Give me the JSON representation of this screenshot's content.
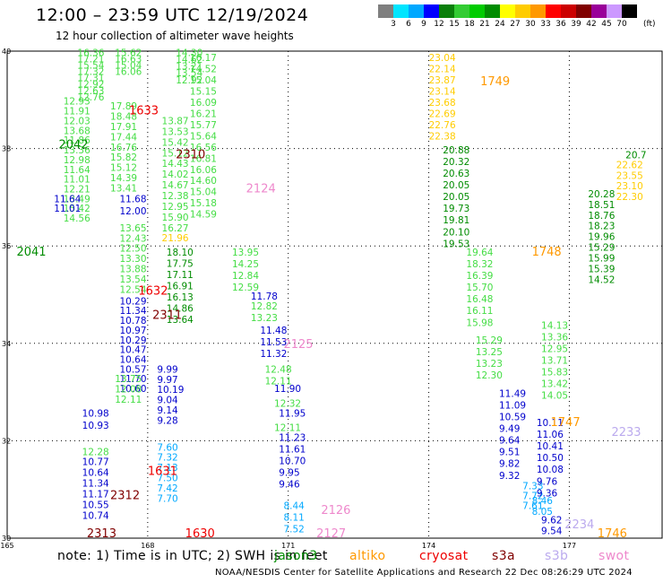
{
  "title": "12:00 – 23:59 UTC 12/19/2024",
  "subtitle": "12 hour collection of altimeter wave heights",
  "color_scale": {
    "unit": "(ft)",
    "ticks": [
      "3",
      "6",
      "9",
      "12",
      "15",
      "18",
      "21",
      "24",
      "27",
      "30",
      "33",
      "36",
      "39",
      "42",
      "45",
      "70"
    ],
    "colors": [
      "#7f7f7f",
      "#00e5ff",
      "#00a8ff",
      "#0000ff",
      "#0a7f0a",
      "#33cc33",
      "#00cc00",
      "#008c00",
      "#ffff00",
      "#ffcc00",
      "#ff9900",
      "#ff0000",
      "#cc0000",
      "#800000",
      "#990099",
      "#cc99ff",
      "#000000"
    ]
  },
  "map": {
    "lon_ticks": [
      "165",
      "168",
      "171",
      "174",
      "177"
    ],
    "lat_ticks": [
      "40",
      "38",
      "36",
      "34",
      "32",
      "30"
    ],
    "lat_range": [
      30,
      40
    ],
    "lon_range": [
      165,
      179
    ],
    "tracks": [
      {
        "color": "#44dd44",
        "lon": 166.5,
        "lat": 39.9,
        "vals": [
          "16.36",
          "17.21",
          "15.54",
          "17.32",
          "17.31",
          "12.92",
          "12.63",
          "12.76"
        ],
        "step": -0.13
      },
      {
        "color": "#44dd44",
        "lon": 167.3,
        "lat": 39.9,
        "vals": [
          "15.62",
          "16.63",
          "15.04",
          "16.06"
        ],
        "step": -0.13
      },
      {
        "color": "#44dd44",
        "lon": 166.2,
        "lat": 38.9,
        "vals": [
          "12.93",
          "11.91",
          "12.03",
          "13.68",
          "11.86",
          "13.36",
          "12.98",
          "11.64",
          "11.01",
          "12.21",
          "13.49",
          "15.42",
          "14.56"
        ],
        "step": -0.2
      },
      {
        "color": "#0000cc",
        "lon": 166.0,
        "lat": 36.9,
        "vals": [
          "11.64",
          "11.01"
        ],
        "step": -0.2
      },
      {
        "color": "#44dd44",
        "lon": 167.2,
        "lat": 38.8,
        "vals": [
          "17.89",
          "18.48",
          "17.91",
          "17.44",
          "16.76",
          "15.82",
          "15.12",
          "14.39",
          "13.41"
        ],
        "step": -0.21
      },
      {
        "color": "#0000cc",
        "lon": 167.4,
        "lat": 36.9,
        "vals": [
          "11.68",
          "12.00"
        ],
        "step": -0.25
      },
      {
        "color": "#44dd44",
        "lon": 167.4,
        "lat": 36.3,
        "vals": [
          "13.65",
          "12.43",
          "12.50",
          "13.30",
          "13.88",
          "13.54",
          "12.54"
        ],
        "step": -0.21
      },
      {
        "color": "#0000cc",
        "lon": 167.4,
        "lat": 34.8,
        "vals": [
          "10.29",
          "11.34",
          "10.78",
          "10.97",
          "10.29",
          "10.47",
          "10.64",
          "10.57",
          "11.70",
          "10.60"
        ],
        "step": -0.2
      },
      {
        "color": "#44dd44",
        "lon": 167.3,
        "lat": 33.2,
        "vals": [
          "13.75",
          "12.08",
          "12.11"
        ],
        "step": -0.21
      },
      {
        "color": "#0000cc",
        "lon": 166.6,
        "lat": 32.5,
        "vals": [
          "10.98",
          "10.93"
        ],
        "step": -0.25
      },
      {
        "color": "#44dd44",
        "lon": 166.6,
        "lat": 31.7,
        "vals": [
          "12.28"
        ],
        "step": -0.25
      },
      {
        "color": "#0000cc",
        "lon": 166.6,
        "lat": 31.5,
        "vals": [
          "10.77",
          "10.64",
          "11.34",
          "11.17",
          "10.55",
          "10.74"
        ],
        "step": -0.22
      },
      {
        "color": "#44dd44",
        "lon": 168.6,
        "lat": 39.9,
        "vals": [
          "14.30",
          "14.62",
          "13.21",
          "13.54",
          "12.92"
        ],
        "step": -0.14
      },
      {
        "color": "#44dd44",
        "lon": 168.9,
        "lat": 39.8,
        "vals": [
          "16.17",
          "14.52",
          "15.04",
          "15.15",
          "16.09",
          "16.21",
          "15.77",
          "15.64",
          "16.56",
          "16.81",
          "16.06",
          "14.60",
          "15.04",
          "15.18",
          "14.59"
        ],
        "step": -0.23
      },
      {
        "color": "#44dd44",
        "lon": 168.3,
        "lat": 38.5,
        "vals": [
          "13.87",
          "13.53",
          "15.42",
          "15.12",
          "14.43",
          "14.02",
          "14.67",
          "12.38",
          "12.95",
          "15.90",
          "16.27"
        ],
        "step": -0.22
      },
      {
        "color": "#ffcc00",
        "lon": 168.3,
        "lat": 36.1,
        "vals": [
          "21.96"
        ],
        "step": -0.2
      },
      {
        "color": "#008c00",
        "lon": 168.4,
        "lat": 35.8,
        "vals": [
          "18.10",
          "17.75",
          "17.11",
          "16.91",
          "16.13",
          "14.86",
          "13.64"
        ],
        "step": -0.23
      },
      {
        "color": "#0000cc",
        "lon": 168.2,
        "lat": 33.4,
        "vals": [
          "9.99",
          "9.97",
          "10.19",
          "9.04",
          "9.14",
          "9.28"
        ],
        "step": -0.21
      },
      {
        "color": "#00a8ff",
        "lon": 168.2,
        "lat": 31.8,
        "vals": [
          "7.60",
          "7.32",
          "7.13",
          "7.50",
          "7.42",
          "7.70"
        ],
        "step": -0.21
      },
      {
        "color": "#44dd44",
        "lon": 169.8,
        "lat": 35.8,
        "vals": [
          "13.95",
          "14.25",
          "12.84",
          "12.59"
        ],
        "step": -0.24
      },
      {
        "color": "#0000cc",
        "lon": 170.2,
        "lat": 34.9,
        "vals": [
          "11.78"
        ],
        "step": -0.24
      },
      {
        "color": "#44dd44",
        "lon": 170.2,
        "lat": 34.7,
        "vals": [
          "12.82",
          "13.23"
        ],
        "step": -0.24
      },
      {
        "color": "#0000cc",
        "lon": 170.4,
        "lat": 34.2,
        "vals": [
          "11.48",
          "11.53",
          "11.32"
        ],
        "step": -0.24
      },
      {
        "color": "#44dd44",
        "lon": 170.5,
        "lat": 33.4,
        "vals": [
          "12.48",
          "12.11"
        ],
        "step": -0.24
      },
      {
        "color": "#0000cc",
        "lon": 170.7,
        "lat": 33.0,
        "vals": [
          "11.90"
        ],
        "step": -0.24
      },
      {
        "color": "#44dd44",
        "lon": 170.7,
        "lat": 32.7,
        "vals": [
          "12.32"
        ],
        "step": -0.24
      },
      {
        "color": "#0000cc",
        "lon": 170.8,
        "lat": 32.5,
        "vals": [
          "11.95"
        ],
        "step": -0.24
      },
      {
        "color": "#44dd44",
        "lon": 170.7,
        "lat": 32.2,
        "vals": [
          "12.11"
        ],
        "step": -0.24
      },
      {
        "color": "#0000cc",
        "lon": 170.8,
        "lat": 32.0,
        "vals": [
          "11.23",
          "11.61",
          "10.70",
          "9.95",
          "9.46"
        ],
        "step": -0.24
      },
      {
        "color": "#00a8ff",
        "lon": 170.9,
        "lat": 30.6,
        "vals": [
          "8.44",
          "8.11",
          "7.52"
        ],
        "step": -0.24
      },
      {
        "color": "#ffcc00",
        "lon": 174.0,
        "lat": 39.8,
        "vals": [
          "23.04",
          "22.14",
          "23.87",
          "23.14",
          "23.68",
          "22.69",
          "22.76",
          "22.38"
        ],
        "step": -0.23
      },
      {
        "color": "#008c00",
        "lon": 174.3,
        "lat": 37.9,
        "vals": [
          "20.88",
          "20.32",
          "20.63",
          "20.05",
          "20.05",
          "19.73",
          "19.81",
          "20.10",
          "19.53"
        ],
        "step": -0.24
      },
      {
        "color": "#44dd44",
        "lon": 174.8,
        "lat": 35.8,
        "vals": [
          "19.64",
          "18.32",
          "16.39",
          "15.70",
          "16.48",
          "16.11",
          "15.98"
        ],
        "step": -0.24
      },
      {
        "color": "#44dd44",
        "lon": 175.0,
        "lat": 34.0,
        "vals": [
          "15.29",
          "13.25",
          "13.23",
          "12.30"
        ],
        "step": -0.24
      },
      {
        "color": "#0000cc",
        "lon": 175.5,
        "lat": 32.9,
        "vals": [
          "11.49",
          "11.09",
          "10.59",
          "9.49",
          "9.64",
          "9.51",
          "9.82",
          "9.32"
        ],
        "step": -0.24
      },
      {
        "color": "#00a8ff",
        "lon": 176.0,
        "lat": 31.0,
        "vals": [
          "7.33",
          "7.72",
          "7.61"
        ],
        "step": -0.2
      },
      {
        "color": "#44dd44",
        "lon": 176.4,
        "lat": 34.3,
        "vals": [
          "14.13",
          "13.36",
          "12.95",
          "13.71",
          "15.83",
          "13.42",
          "14.05"
        ],
        "step": -0.24
      },
      {
        "color": "#0000cc",
        "lon": 176.3,
        "lat": 32.3,
        "vals": [
          "10.11",
          "11.06",
          "10.41",
          "10.50",
          "10.08",
          "9.76",
          "9.36"
        ],
        "step": -0.24
      },
      {
        "color": "#00a8ff",
        "lon": 176.2,
        "lat": 30.7,
        "vals": [
          "8.46",
          "8.05"
        ],
        "step": -0.22
      },
      {
        "color": "#0000cc",
        "lon": 176.4,
        "lat": 30.3,
        "vals": [
          "9.62",
          "9.54"
        ],
        "step": -0.22
      },
      {
        "color": "#008c00",
        "lon": 177.4,
        "lat": 37.0,
        "vals": [
          "20.28",
          "18.51",
          "18.76",
          "18.23",
          "19.96",
          "15.29",
          "15.99",
          "15.39",
          "14.52"
        ],
        "step": -0.22
      },
      {
        "color": "#ffcc00",
        "lon": 178.0,
        "lat": 37.6,
        "vals": [
          "22.62",
          "23.55",
          "23.10",
          "22.30"
        ],
        "step": -0.22
      },
      {
        "color": "#008c00",
        "lon": 178.2,
        "lat": 37.8,
        "vals": [
          "20.7"
        ],
        "step": -0.22
      }
    ],
    "time_labels": [
      {
        "text": "1633",
        "lon": 167.6,
        "lat": 38.7,
        "color": "#ee0000"
      },
      {
        "text": "2042",
        "lon": 166.1,
        "lat": 38.0,
        "color": "#008c00"
      },
      {
        "text": "2041",
        "lon": 165.2,
        "lat": 35.8,
        "color": "#008c00"
      },
      {
        "text": "2310",
        "lon": 168.6,
        "lat": 37.8,
        "color": "#800000"
      },
      {
        "text": "2124",
        "lon": 170.1,
        "lat": 37.1,
        "color": "#ee88cc"
      },
      {
        "text": "1632",
        "lon": 167.8,
        "lat": 35.0,
        "color": "#ee0000"
      },
      {
        "text": "2311",
        "lon": 168.1,
        "lat": 34.5,
        "color": "#800000"
      },
      {
        "text": "2125",
        "lon": 170.9,
        "lat": 33.9,
        "color": "#ee88cc"
      },
      {
        "text": "1631",
        "lon": 168.0,
        "lat": 31.3,
        "color": "#ee0000"
      },
      {
        "text": "2312",
        "lon": 167.2,
        "lat": 30.8,
        "color": "#800000"
      },
      {
        "text": "2313",
        "lon": 166.7,
        "lat": 30.0,
        "color": "#800000"
      },
      {
        "text": "1630",
        "lon": 168.8,
        "lat": 30.0,
        "color": "#ee0000"
      },
      {
        "text": "2126",
        "lon": 171.7,
        "lat": 30.5,
        "color": "#ee88cc"
      },
      {
        "text": "2127",
        "lon": 171.6,
        "lat": 30.0,
        "color": "#ee88cc"
      },
      {
        "text": "1749",
        "lon": 175.1,
        "lat": 39.3,
        "color": "#ff9900"
      },
      {
        "text": "1748",
        "lon": 176.2,
        "lat": 35.8,
        "color": "#ff9900"
      },
      {
        "text": "2233",
        "lon": 177.9,
        "lat": 32.1,
        "color": "#bbaaee"
      },
      {
        "text": "1747",
        "lon": 176.6,
        "lat": 32.3,
        "color": "#ff9900"
      },
      {
        "text": "2234",
        "lon": 176.9,
        "lat": 30.2,
        "color": "#bbaaee"
      },
      {
        "text": "1746",
        "lon": 177.6,
        "lat": 30.0,
        "color": "#ff9900"
      }
    ]
  },
  "footer": {
    "note": "note: 1) Time is in UTC; 2) SWH is in feet",
    "satellites": [
      {
        "name": "jason3",
        "color": "#008c00"
      },
      {
        "name": "altiko",
        "color": "#ff9900"
      },
      {
        "name": "cryosat",
        "color": "#ee0000"
      },
      {
        "name": "s3a",
        "color": "#800000"
      },
      {
        "name": "s3b",
        "color": "#bbaaee"
      },
      {
        "name": "swot",
        "color": "#ee88cc"
      }
    ],
    "credit": "NOAA/NESDIS Center for Satellite Applications and Research     22 Dec 08:26:29 UTC 2024"
  }
}
